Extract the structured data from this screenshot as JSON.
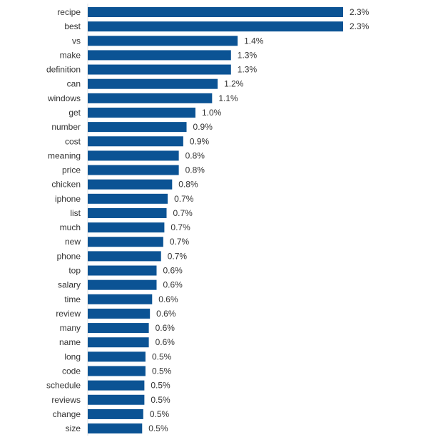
{
  "chart_data": {
    "type": "bar",
    "orientation": "horizontal",
    "title": "",
    "xlabel": "",
    "ylabel": "",
    "xlim": [
      0,
      2.3
    ],
    "grid": false,
    "bar_color": "#0b5394",
    "categories": [
      "recipe",
      "best",
      "vs",
      "make",
      "definition",
      "can",
      "windows",
      "get",
      "number",
      "cost",
      "meaning",
      "price",
      "chicken",
      "iphone",
      "list",
      "much",
      "new",
      "phone",
      "top",
      "salary",
      "time",
      "review",
      "many",
      "name",
      "long",
      "code",
      "schedule",
      "reviews",
      "change",
      "size"
    ],
    "values": [
      2.3,
      2.3,
      1.35,
      1.29,
      1.29,
      1.17,
      1.12,
      0.97,
      0.89,
      0.86,
      0.82,
      0.82,
      0.76,
      0.72,
      0.71,
      0.69,
      0.68,
      0.66,
      0.62,
      0.62,
      0.58,
      0.56,
      0.55,
      0.55,
      0.52,
      0.52,
      0.51,
      0.51,
      0.5,
      0.49
    ],
    "data_labels": [
      "2.3%",
      "2.3%",
      "1.4%",
      "1.3%",
      "1.3%",
      "1.2%",
      "1.1%",
      "1.0%",
      "0.9%",
      "0.9%",
      "0.8%",
      "0.8%",
      "0.8%",
      "0.7%",
      "0.7%",
      "0.7%",
      "0.7%",
      "0.7%",
      "0.6%",
      "0.6%",
      "0.6%",
      "0.6%",
      "0.6%",
      "0.6%",
      "0.5%",
      "0.5%",
      "0.5%",
      "0.5%",
      "0.5%",
      "0.5%"
    ]
  }
}
